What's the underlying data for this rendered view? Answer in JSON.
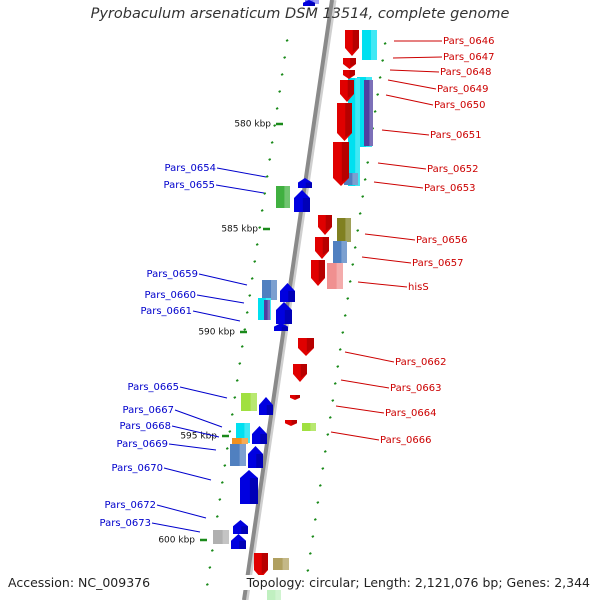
{
  "title": "Pyrobaculum arsenaticum DSM 13514, complete genome",
  "footer": {
    "accession": "Accession: NC_009376",
    "topology": "Topology: circular; Length: 2,121,076 bp; Genes: 2,344"
  },
  "colors": {
    "forward_gene": "#e00000",
    "reverse_gene": "#0000e0",
    "forward_label": "#cc0000",
    "reverse_label": "#0000cc",
    "backbone": "#8a8a8a",
    "tick": "#1a8a1a",
    "cds_cyan": "#00e0f0",
    "cds_purple": "#5040a0",
    "cds_green": "#40b040",
    "cds_lightgreen": "#a0e040",
    "cds_olive": "#808020",
    "cds_steelblue": "#5080c0",
    "cds_salmon": "#f09090",
    "cds_orange": "#f09020"
  },
  "scale_labels": [
    "580 kbp",
    "585 kbp",
    "590 kbp",
    "595 kbp",
    "600 kbp"
  ],
  "forward_genes": [
    "Pars_0646",
    "Pars_0647",
    "Pars_0648",
    "Pars_0649",
    "Pars_0650",
    "Pars_0651",
    "Pars_0652",
    "Pars_0653",
    "Pars_0656",
    "Pars_0657",
    "hisS",
    "Pars_0662",
    "Pars_0663",
    "Pars_0664",
    "Pars_0666"
  ],
  "reverse_genes": [
    "Pars_0654",
    "Pars_0655",
    "Pars_0659",
    "Pars_0660",
    "Pars_0661",
    "Pars_0665",
    "Pars_0667",
    "Pars_0668",
    "Pars_0669",
    "Pars_0670",
    "Pars_0672",
    "Pars_0673"
  ]
}
